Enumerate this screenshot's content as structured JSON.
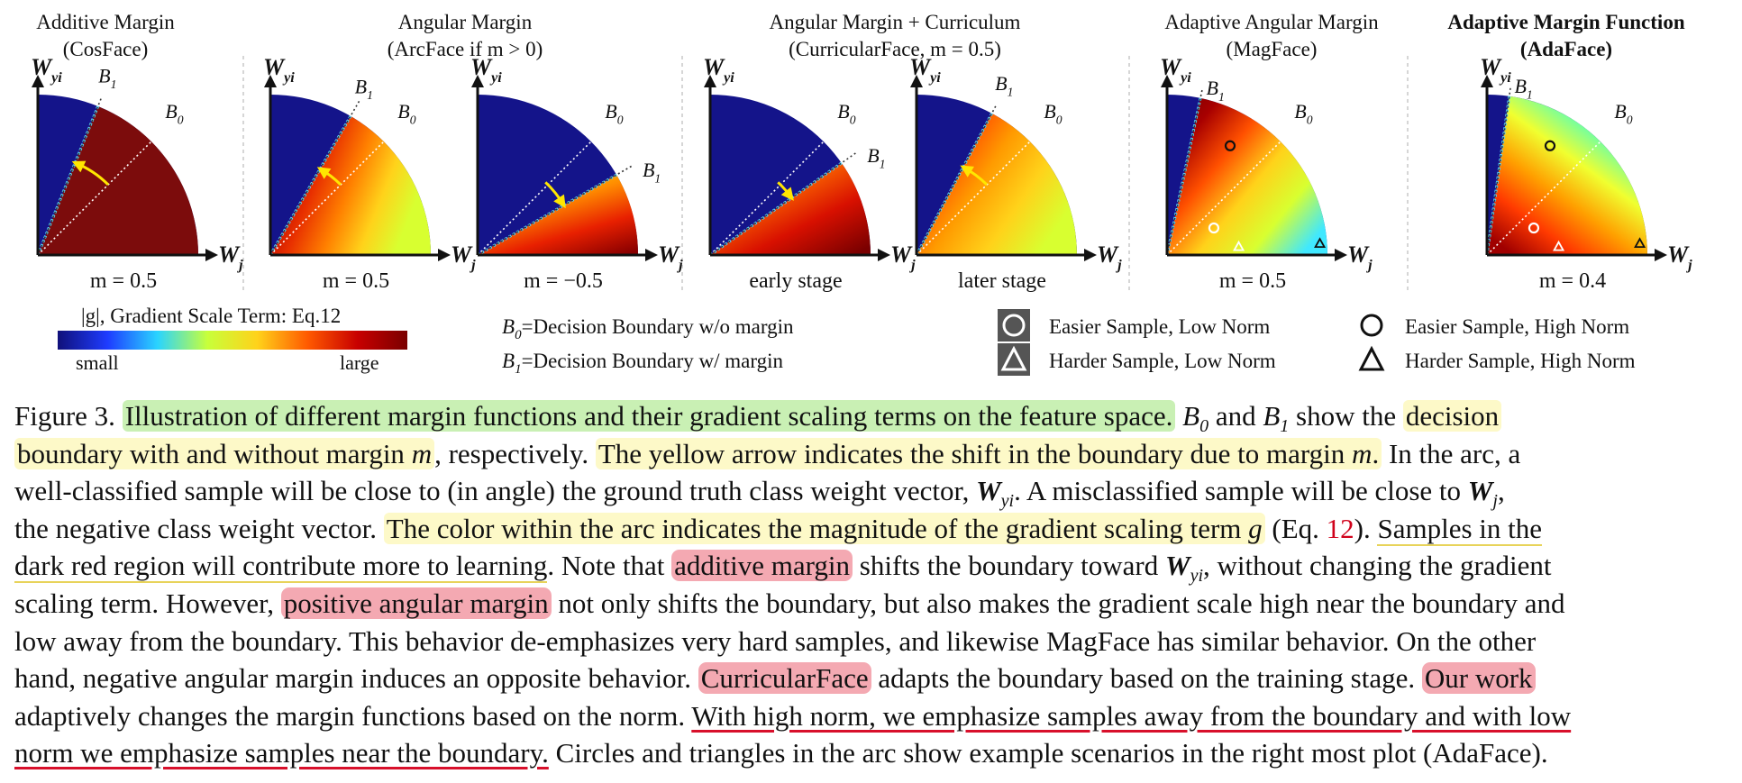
{
  "panels": [
    {
      "title": [
        "Additive Margin",
        "(CosFace)"
      ],
      "bold": false,
      "plots": [
        {
          "param": "m = 0.5"
        }
      ]
    },
    {
      "title": [
        "Angular Margin",
        "(ArcFace if m > 0)"
      ],
      "bold": false,
      "plots": [
        {
          "param": "m = 0.5"
        },
        {
          "param": "m = −0.5"
        }
      ]
    },
    {
      "title": [
        "Angular Margin + Curriculum",
        "(CurricularFace, m = 0.5)"
      ],
      "bold": false,
      "plots": [
        {
          "param": "early stage"
        },
        {
          "param": "later stage"
        }
      ]
    },
    {
      "title": [
        "Adaptive Angular Margin",
        "(MagFace)"
      ],
      "bold": false,
      "plots": [
        {
          "param": "m = 0.5"
        }
      ]
    },
    {
      "title": [
        "Adaptive Margin Function",
        "(AdaFace)"
      ],
      "bold": true,
      "plots": [
        {
          "param": "m = 0.4"
        }
      ]
    }
  ],
  "axes": {
    "y": "W",
    "y_sub": "yi",
    "x": "W",
    "x_sub": "j",
    "b0": "B",
    "b0_sub": "0",
    "b1": "B",
    "b1_sub": "1"
  },
  "colorbar": {
    "label": "|g|, Gradient Scale Term: Eq.12",
    "low": "small",
    "high": "large",
    "colors": [
      "#10107a",
      "#1e3cff",
      "#2ad4ff",
      "#c8ff3a",
      "#ffd21a",
      "#ff5a00",
      "#c80000",
      "#7a0000"
    ]
  },
  "legend": {
    "boundaries": [
      {
        "sym": "B",
        "sub": "0",
        "text": "=Decision Boundary w/o margin"
      },
      {
        "sym": "B",
        "sub": "1",
        "text": "=Decision Boundary w/ margin"
      }
    ],
    "low_norm": [
      "Easier Sample, Low Norm",
      "Harder Sample, Low Norm"
    ],
    "high_norm": [
      "Easier Sample, High Norm",
      "Harder Sample, High Norm"
    ]
  },
  "caption": {
    "l1_a": "Figure 3.",
    "l1_b": "Illustration of different margin functions and their gradient scaling terms on the feature space.",
    "l1_c": "B",
    "l1_c_sub": "0",
    "l1_d": " and ",
    "l1_e": "B",
    "l1_e_sub": "1",
    "l1_f": " show the ",
    "l1_g": "decision",
    "l2_a": "boundary with and without margin ",
    "l2_b": "m",
    "l2_c": ", respectively.",
    "l2_d": "The yellow arrow indicates the shift in the boundary due to margin ",
    "l2_e": "m",
    "l2_f": ".",
    "l2_g": " In the arc, a",
    "l3_a": "well-classified sample will be close to (in angle) the ground truth class weight vector, ",
    "l3_b": "W",
    "l3_b_sub": "yi",
    "l3_c": ".  A misclassified sample will be close to ",
    "l3_d": "W",
    "l3_d_sub": "j",
    "l3_e": ",",
    "l4_a": "the negative class weight vector. ",
    "l4_b": "The color within the arc indicates the magnitude of the gradient scaling term ",
    "l4_c": "g",
    "l4_d": " (Eq. ",
    "l4_e": "12",
    "l4_f": "). ",
    "l4_g": "Samples in the",
    "l5_a": "dark red region will contribute more to learning",
    "l5_b": ". Note that ",
    "l5_c": "additive margin",
    "l5_d": " shifts the boundary toward ",
    "l5_e": "W",
    "l5_e_sub": "yi",
    "l5_f": ", without changing the gradient",
    "l6_a": "scaling term. However, ",
    "l6_b": "positive angular margin",
    "l6_c": " not only shifts the boundary, but also makes the gradient scale high near the boundary and",
    "l7": "low away from the boundary.  This behavior de-emphasizes very hard samples, and likewise MagFace has similar behavior.  On the other",
    "l8_a": "hand, negative angular margin induces an opposite behavior. ",
    "l8_b": "CurricularFace",
    "l8_c": " adapts the boundary based on the training stage. ",
    "l8_d": "Our work",
    "l9_a": "adaptively changes the margin functions based on the norm. ",
    "l9_b": "With high norm, we emphasize samples away from the boundary and with low",
    "l10_a": "norm we emphasize samples near the boundary.",
    "l10_b": " Circles and triangles in the arc show example scenarios in the right most plot (AdaFace)."
  }
}
